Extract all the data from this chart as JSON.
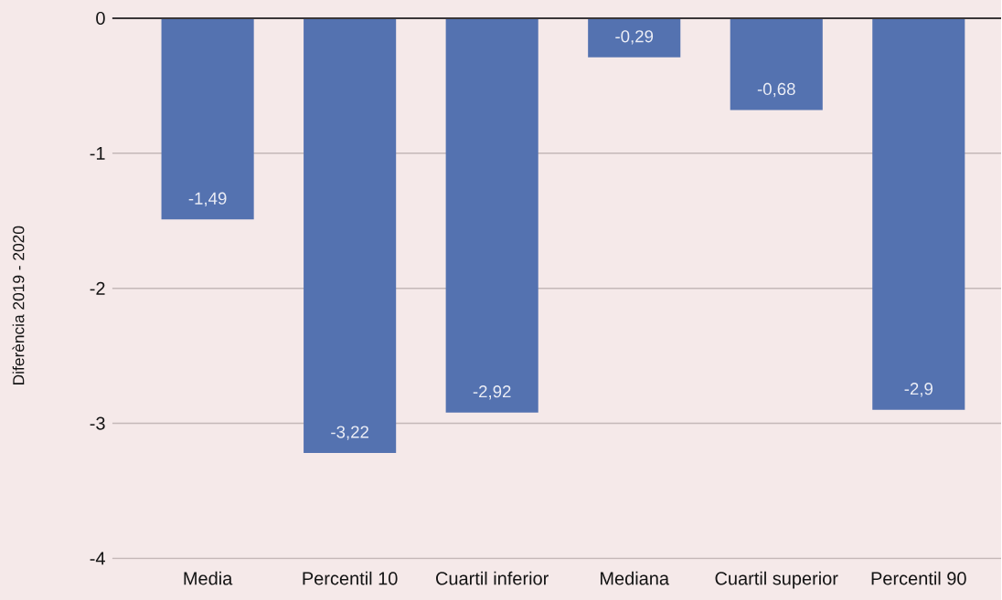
{
  "chart_data": {
    "type": "bar",
    "ylabel": "Diferència 2019 - 2020",
    "categories": [
      "Media",
      "Percentil 10",
      "Cuartil inferior",
      "Mediana",
      "Cuartil superior",
      "Percentil 90"
    ],
    "values": [
      -1.49,
      -3.22,
      -2.92,
      -0.29,
      -0.68,
      -2.9
    ],
    "value_labels": [
      "-1,49",
      "-3,22",
      "-2,92",
      "-0,29",
      "-0,68",
      "-2,9"
    ],
    "color": "#5472b0",
    "ylim": [
      -4,
      0
    ],
    "yticks": [
      -4,
      -3,
      -2,
      -1,
      0
    ],
    "grid": "y"
  }
}
